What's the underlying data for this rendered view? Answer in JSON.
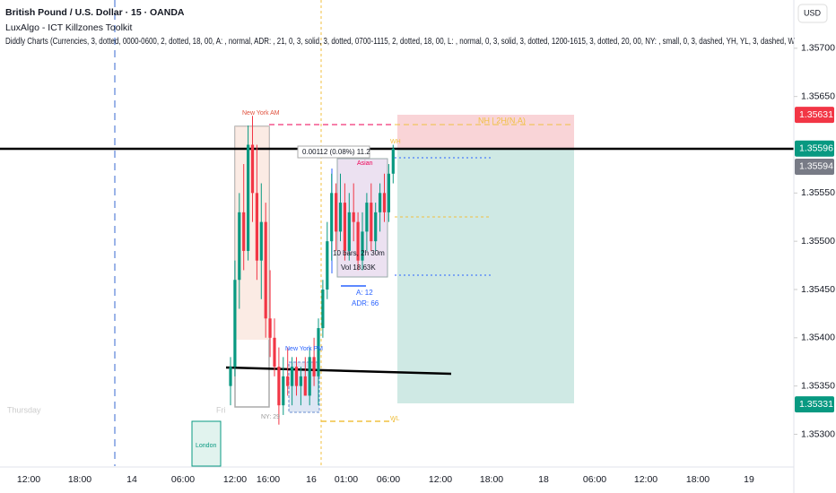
{
  "header": {
    "title": "British Pound / U.S. Dollar · 15 · OANDA",
    "indicators": [
      "LuxAlgo - ICT Killzones Toolkit",
      "Diddly Charts (Currencies, 3, dotted, 0000-0600, 2, dotted, 18, 00, A: , normal, ADR: , 21, 0, 3, solid, 3, dotted, 0700-1115, 2, dotted, 18, 00, L: , normal, 0, 3, solid, 3, dotted, 1200-1615, 3, dotted, 20, 00, NY: , small, 0, 3, dashed, YH, YL, 3, dashed, W"
    ],
    "currency": "USD"
  },
  "annotations": {
    "ny_am": "New York AM",
    "ny_pm": "New York PM",
    "asian": "Asian",
    "london": "London",
    "ny_count": "NY: 29",
    "measure": "0.00112 (0.08%) 11.2",
    "bars": "10 bars, 2h 30m",
    "vol": "Vol 18.63K",
    "asian_range": "A: 12",
    "adr": "ADR: 66",
    "nh": "NH | 2H(N.A)",
    "wh": "WH",
    "wl": "WL",
    "thursday": "Thursday",
    "friday": "Fri"
  },
  "chart_data": {
    "type": "candlestick",
    "up_color": "#089981",
    "down_color": "#f23645",
    "ylim": [
      1.35267,
      1.3575
    ],
    "yticks": [
      {
        "value": 1.357,
        "label": "1.35700"
      },
      {
        "value": 1.3565,
        "label": "1.35650"
      },
      {
        "value": 1.3555,
        "label": "1.35550"
      },
      {
        "value": 1.355,
        "label": "1.35500"
      },
      {
        "value": 1.3545,
        "label": "1.35450"
      },
      {
        "value": 1.354,
        "label": "1.35400"
      },
      {
        "value": 1.3535,
        "label": "1.35350"
      },
      {
        "value": 1.353,
        "label": "1.35300"
      }
    ],
    "time_labels": [
      "12:00",
      "18:00",
      "14",
      "06:00",
      "12:00",
      "16:00",
      "16",
      "01:00",
      "06:00",
      "12:00",
      "18:00",
      "18",
      "06:00",
      "12:00",
      "18:00",
      "19"
    ],
    "price_tags": [
      {
        "value": 1.35631,
        "label": "1.35631",
        "color": "#f23645"
      },
      {
        "value": 1.35596,
        "label": "1.35596",
        "color": "#089981"
      },
      {
        "value": 1.35594,
        "label": "1.35594",
        "color": "#787b86"
      },
      {
        "value": 1.35331,
        "label": "1.35331",
        "color": "#089981"
      }
    ],
    "open": [
      1.3535,
      1.3537,
      1.3546,
      1.3553,
      1.3549,
      1.356,
      1.3555,
      1.3548,
      1.3552,
      1.3542,
      1.354,
      1.3537,
      1.3533,
      1.3536,
      1.3535,
      1.3537,
      1.3535,
      1.3536,
      1.3534,
      1.3538,
      1.3536,
      1.3541,
      1.3545,
      1.355,
      1.3555,
      1.3551,
      1.3554,
      1.3549,
      1.3553,
      1.3552,
      1.3548,
      1.3551,
      1.3554,
      1.355,
      1.3553,
      1.3555,
      1.3553,
      1.3557
    ],
    "high": [
      1.3538,
      1.3548,
      1.3555,
      1.3558,
      1.3562,
      1.3563,
      1.356,
      1.3556,
      1.3554,
      1.3547,
      1.3542,
      1.3539,
      1.3538,
      1.3539,
      1.3538,
      1.3538,
      1.3537,
      1.3538,
      1.3539,
      1.354,
      1.3542,
      1.3546,
      1.3552,
      1.3557,
      1.3556,
      1.3557,
      1.3556,
      1.3555,
      1.3556,
      1.3553,
      1.3553,
      1.3555,
      1.3556,
      1.3554,
      1.3556,
      1.3557,
      1.3558,
      1.356
    ],
    "low": [
      1.3533,
      1.3536,
      1.3543,
      1.3547,
      1.3548,
      1.3552,
      1.3546,
      1.3544,
      1.354,
      1.3538,
      1.3536,
      1.3531,
      1.3532,
      1.3534,
      1.3533,
      1.3534,
      1.3533,
      1.3534,
      1.3533,
      1.3535,
      1.3533,
      1.354,
      1.3544,
      1.3548,
      1.3549,
      1.355,
      1.3548,
      1.3548,
      1.355,
      1.3547,
      1.3547,
      1.3549,
      1.3549,
      1.3549,
      1.3551,
      1.3552,
      1.3552,
      1.3556
    ],
    "close": [
      1.3537,
      1.3546,
      1.3553,
      1.3549,
      1.356,
      1.3555,
      1.3548,
      1.3552,
      1.3542,
      1.354,
      1.3537,
      1.3533,
      1.3536,
      1.3535,
      1.3537,
      1.3535,
      1.3536,
      1.3534,
      1.3538,
      1.3536,
      1.3541,
      1.3545,
      1.355,
      1.3555,
      1.3551,
      1.3554,
      1.3549,
      1.3553,
      1.3552,
      1.3548,
      1.3551,
      1.3554,
      1.355,
      1.3553,
      1.3555,
      1.3553,
      1.3557,
      1.35596
    ]
  }
}
